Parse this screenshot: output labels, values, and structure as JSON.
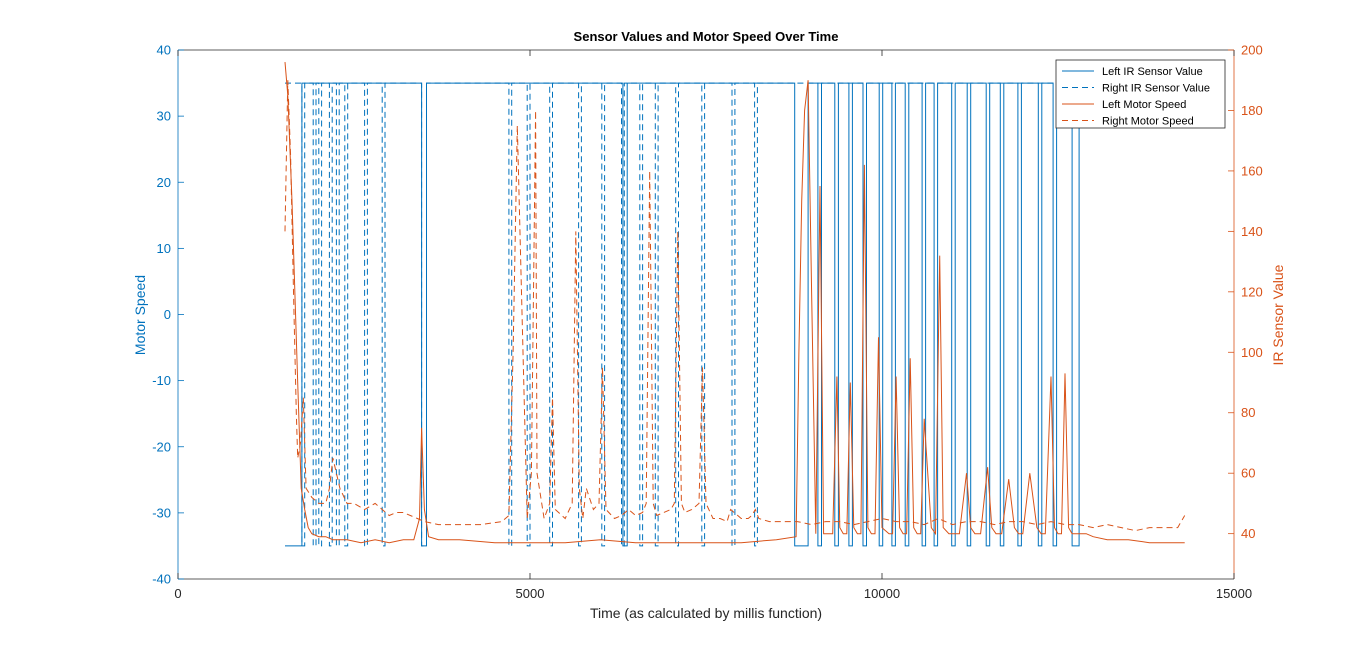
{
  "colors": {
    "left_axis": "#0072BD",
    "right_axis": "#D95319",
    "axis_box": "#262626",
    "background": "#ffffff"
  },
  "chart_data": {
    "type": "line",
    "title": "Sensor Values and Motor Speed Over Time",
    "xlabel": "Time (as calculated by millis function)",
    "ylabel_left": "Motor Speed",
    "ylabel_right": "IR Sensor Value",
    "xlim": [
      0,
      15000
    ],
    "ylim_left": [
      -40,
      40
    ],
    "ylim_right": [
      25,
      200
    ],
    "x_ticks": [
      0,
      5000,
      10000,
      15000
    ],
    "y_ticks_left": [
      -40,
      -30,
      -20,
      -10,
      0,
      10,
      20,
      30,
      40
    ],
    "y_ticks_right": [
      40,
      60,
      80,
      100,
      120,
      140,
      160,
      180,
      200
    ],
    "grid": false,
    "legend_position": "top-right",
    "legend": [
      "Left IR Sensor Value",
      "Right IR Sensor Value",
      "Left Motor Speed",
      "Right Motor Speed"
    ],
    "series": [
      {
        "name": "Left IR Sensor Value",
        "axis": "left",
        "style": "solid",
        "color": "#0072BD",
        "low": -35,
        "high": 35,
        "x_start": 1520,
        "x_end": 12850,
        "initial": "low",
        "transitions": [
          {
            "low": [
              1520,
              1760
            ]
          },
          {
            "low": [
              3460,
              3530
            ]
          },
          {
            "low": [
              6320,
              6380
            ]
          },
          {
            "low": [
              8760,
              8950
            ]
          },
          {
            "low": [
              9090,
              9140
            ]
          },
          {
            "low": [
              9330,
              9380
            ]
          },
          {
            "low": [
              9530,
              9580
            ]
          },
          {
            "low": [
              9730,
              9780
            ]
          },
          {
            "low": [
              9960,
              10010
            ]
          },
          {
            "low": [
              10140,
              10190
            ]
          },
          {
            "low": [
              10330,
              10380
            ]
          },
          {
            "low": [
              10570,
              10620
            ]
          },
          {
            "low": [
              10740,
              10790
            ]
          },
          {
            "low": [
              10990,
              11040
            ]
          },
          {
            "low": [
              11210,
              11260
            ]
          },
          {
            "low": [
              11480,
              11530
            ]
          },
          {
            "low": [
              11680,
              11730
            ]
          },
          {
            "low": [
              11930,
              11980
            ]
          },
          {
            "low": [
              12220,
              12270
            ]
          },
          {
            "low": [
              12430,
              12480
            ]
          },
          {
            "low": [
              12700,
              12800
            ]
          }
        ]
      },
      {
        "name": "Right IR Sensor Value",
        "axis": "left",
        "style": "dashed",
        "color": "#0072BD",
        "low": -35,
        "high": 35,
        "x_start": 1520,
        "x_end": 12850,
        "pulses_low": [
          [
            1760,
            1800
          ],
          [
            1920,
            1960
          ],
          [
            2000,
            2040
          ],
          [
            2150,
            2190
          ],
          [
            2250,
            2290
          ],
          [
            2370,
            2410
          ],
          [
            2650,
            2690
          ],
          [
            2900,
            2940
          ],
          [
            3460,
            3530
          ],
          [
            4700,
            4740
          ],
          [
            4960,
            5000
          ],
          [
            5280,
            5320
          ],
          [
            5690,
            5730
          ],
          [
            6020,
            6060
          ],
          [
            6300,
            6340
          ],
          [
            6560,
            6600
          ],
          [
            6780,
            6820
          ],
          [
            7070,
            7110
          ],
          [
            7440,
            7480
          ],
          [
            7870,
            7910
          ],
          [
            8190,
            8230
          ]
        ]
      },
      {
        "name": "Left Motor Speed",
        "axis": "right",
        "style": "solid",
        "color": "#D95319",
        "x": [
          1520,
          1560,
          1620,
          1700,
          1750,
          1800,
          1850,
          1900,
          2000,
          2100,
          2200,
          2400,
          2600,
          2800,
          3000,
          3200,
          3350,
          3430,
          3460,
          3500,
          3560,
          3700,
          4000,
          4500,
          5000,
          5500,
          6000,
          6500,
          7000,
          7500,
          8000,
          8500,
          8780,
          8820,
          8860,
          8900,
          8950,
          9000,
          9060,
          9120,
          9170,
          9230,
          9300,
          9360,
          9400,
          9450,
          9500,
          9550,
          9600,
          9650,
          9700,
          9750,
          9800,
          9850,
          9900,
          9950,
          10000,
          10100,
          10150,
          10200,
          10250,
          10300,
          10350,
          10400,
          10450,
          10500,
          10550,
          10600,
          10700,
          10760,
          10820,
          10870,
          10950,
          11000,
          11100,
          11200,
          11260,
          11320,
          11400,
          11500,
          11560,
          11620,
          11700,
          11800,
          11880,
          11940,
          12000,
          12100,
          12200,
          12260,
          12320,
          12400,
          12450,
          12500,
          12550,
          12600,
          12650,
          12700,
          12760,
          12800,
          12900,
          13000,
          13200,
          13500,
          13800,
          14000,
          14300
        ],
        "values": [
          196,
          185,
          150,
          90,
          55,
          48,
          42,
          40,
          39,
          39,
          38,
          38,
          37,
          38,
          37,
          38,
          38,
          45,
          75,
          48,
          39,
          38,
          38,
          37,
          37,
          37,
          38,
          37,
          37,
          37,
          37,
          38,
          39,
          100,
          150,
          180,
          190,
          120,
          40,
          155,
          40,
          40,
          40,
          92,
          42,
          40,
          40,
          90,
          42,
          40,
          40,
          162,
          42,
          40,
          40,
          105,
          42,
          40,
          40,
          92,
          42,
          40,
          40,
          98,
          42,
          40,
          40,
          78,
          42,
          40,
          132,
          42,
          40,
          40,
          40,
          60,
          42,
          40,
          40,
          62,
          42,
          40,
          40,
          58,
          42,
          40,
          40,
          60,
          42,
          40,
          40,
          92,
          42,
          40,
          40,
          93,
          42,
          40,
          40,
          40,
          40,
          39,
          38,
          38,
          37,
          37,
          37
        ]
      },
      {
        "name": "Right Motor Speed",
        "axis": "right",
        "style": "dashed",
        "color": "#D95319",
        "x": [
          1520,
          1560,
          1600,
          1640,
          1680,
          1700,
          1740,
          1780,
          1820,
          1900,
          2000,
          2100,
          2150,
          2200,
          2300,
          2400,
          2500,
          2650,
          2800,
          2900,
          3000,
          3100,
          3200,
          3400,
          3500,
          3700,
          4000,
          4300,
          4600,
          4700,
          4760,
          4820,
          4900,
          4960,
          5020,
          5080,
          5100,
          5200,
          5280,
          5320,
          5360,
          5500,
          5600,
          5650,
          5700,
          5750,
          5800,
          5900,
          5980,
          6030,
          6080,
          6200,
          6300,
          6400,
          6500,
          6600,
          6650,
          6700,
          6750,
          6800,
          6900,
          7000,
          7050,
          7100,
          7150,
          7200,
          7300,
          7400,
          7450,
          7500,
          7600,
          7700,
          7800,
          7850,
          7900,
          8000,
          8100,
          8150,
          8200,
          8250,
          8400,
          8600,
          8800,
          9000,
          9200,
          9400,
          9600,
          9800,
          10000,
          10200,
          10400,
          10600,
          10800,
          11000,
          11200,
          11400,
          11600,
          11800,
          12000,
          12200,
          12400,
          12600,
          12800,
          13000,
          13200,
          13400,
          13600,
          13800,
          14000,
          14200,
          14300
        ],
        "values": [
          140,
          190,
          165,
          120,
          80,
          65,
          70,
          85,
          55,
          52,
          50,
          50,
          55,
          65,
          55,
          50,
          50,
          48,
          50,
          48,
          46,
          47,
          47,
          45,
          44,
          43,
          43,
          43,
          44,
          46,
          100,
          175,
          100,
          45,
          60,
          180,
          60,
          45,
          50,
          85,
          48,
          45,
          50,
          140,
          55,
          45,
          55,
          48,
          50,
          95,
          48,
          45,
          46,
          48,
          46,
          47,
          50,
          160,
          50,
          46,
          47,
          48,
          50,
          140,
          50,
          47,
          48,
          50,
          95,
          50,
          45,
          45,
          44,
          48,
          47,
          45,
          45,
          46,
          48,
          45,
          44,
          44,
          44,
          43,
          44,
          44,
          43,
          44,
          45,
          44,
          44,
          43,
          45,
          43,
          44,
          44,
          43,
          44,
          44,
          43,
          44,
          43,
          43,
          42,
          43,
          42,
          41,
          42,
          42,
          42,
          46
        ]
      }
    ]
  }
}
